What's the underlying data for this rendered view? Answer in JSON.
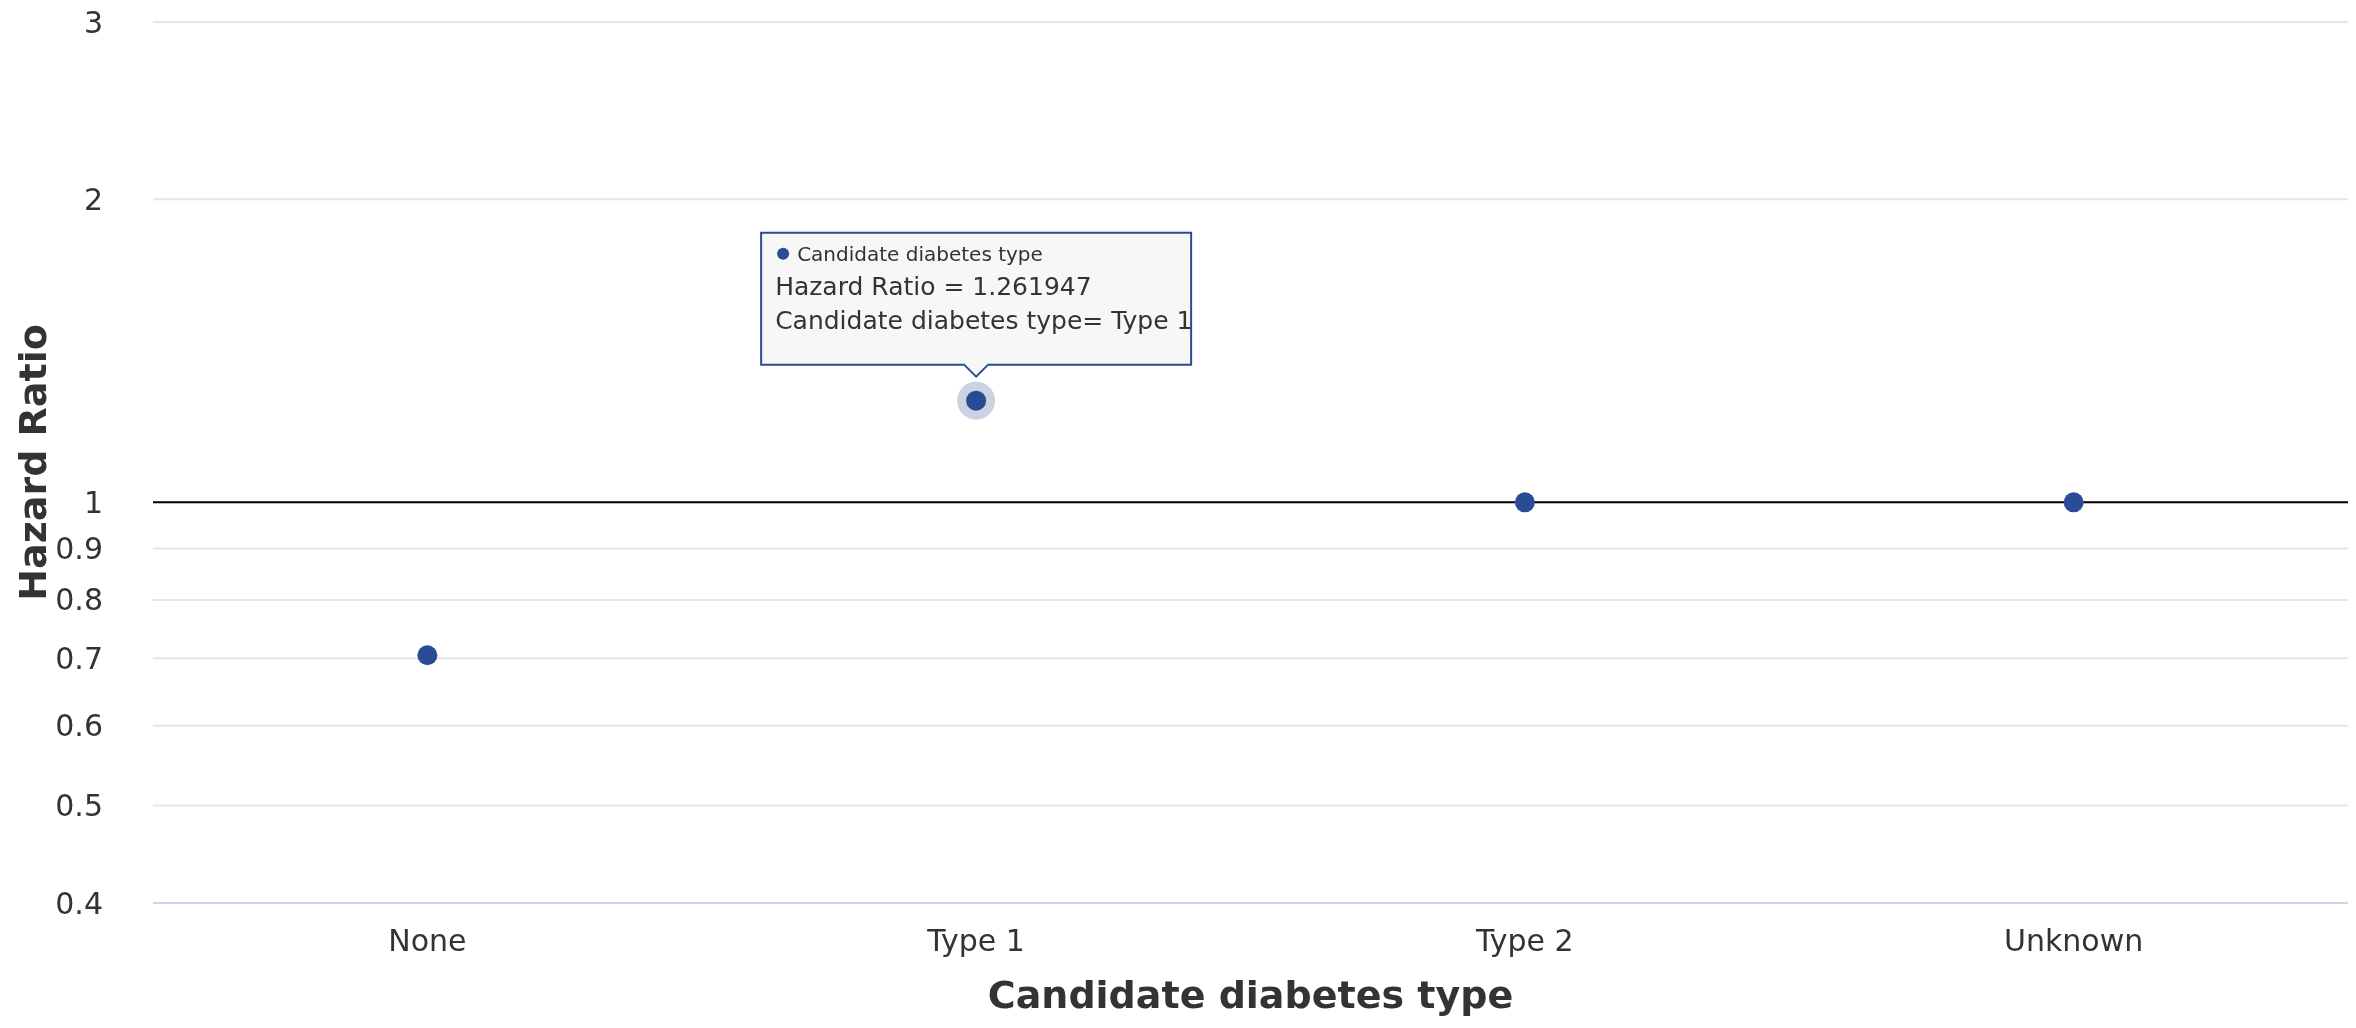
{
  "chart_data": {
    "type": "scatter",
    "xlabel": "Candidate diabetes type",
    "ylabel": "Hazard Ratio",
    "categories": [
      "None",
      "Type 1",
      "Type 2",
      "Unknown"
    ],
    "series": [
      {
        "color": "#2a4b95",
        "values": [
          0.705,
          1.261947,
          1,
          1
        ]
      }
    ],
    "log": "y",
    "ylim": [
      0.4,
      3
    ],
    "yticks": [
      0.4,
      0.5,
      0.6,
      0.7,
      0.8,
      0.9,
      1,
      2,
      3
    ],
    "grid": "y",
    "marker": "circle",
    "ref_lines": [
      {
        "axis": "y",
        "value": 1,
        "color": "#000000"
      }
    ],
    "annotations": [
      "Candidate diabetes type",
      "Hazard Ratio = 1.261947",
      {
        "text": "Candidate diabetes type= Type 1",
        "x": "Type 1",
        "y": 1.261947
      }
    ]
  }
}
